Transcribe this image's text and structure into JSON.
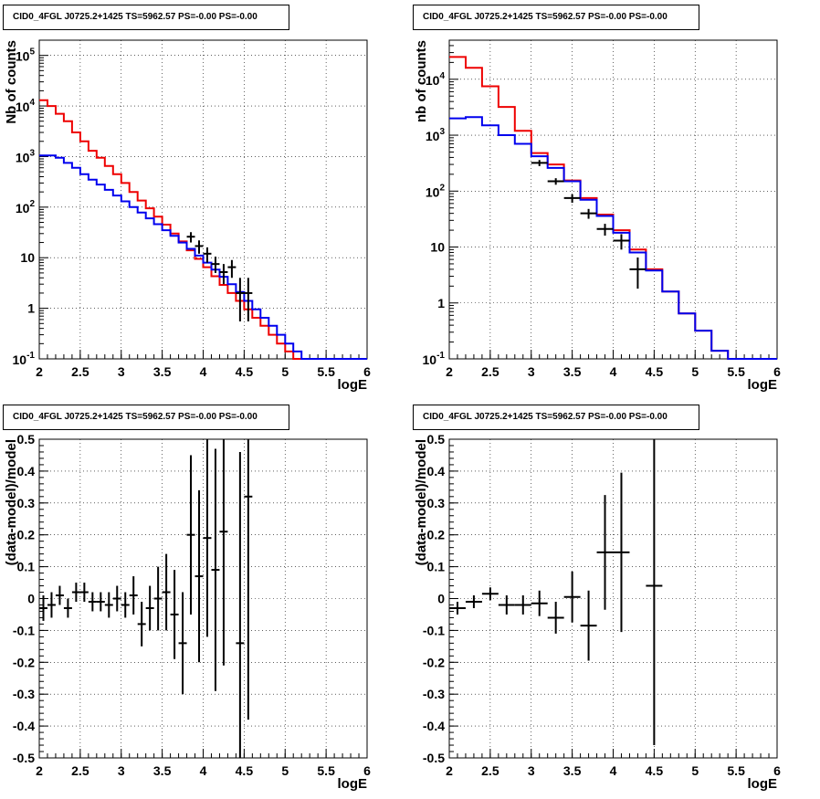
{
  "chart_data": [
    {
      "type": "step-histogram",
      "title": "CID0_4FGL J0725.2+1425 TS=5962.57 PS=-0.00 PS=-0.00",
      "xlabel": "logE",
      "ylabel": "Nb of counts",
      "xlim": [
        2,
        6
      ],
      "ylim": [
        0.1,
        200000
      ],
      "yscale": "log",
      "grid": true,
      "xticks": [
        "2",
        "2.5",
        "3",
        "3.5",
        "4",
        "4.5",
        "5",
        "5.5",
        "6"
      ],
      "yticks": [
        {
          "value": 0.1,
          "base": "10",
          "exp": "-1"
        },
        {
          "value": 1,
          "label": "1"
        },
        {
          "value": 10,
          "label": "10"
        },
        {
          "value": 100,
          "base": "10",
          "exp": "2"
        },
        {
          "value": 1000,
          "base": "10",
          "exp": "3"
        },
        {
          "value": 10000,
          "base": "10",
          "exp": "4"
        },
        {
          "value": 100000,
          "base": "10",
          "exp": "5"
        }
      ],
      "bin_edges": [
        2.0,
        2.1,
        2.2,
        2.3,
        2.4,
        2.5,
        2.6,
        2.7,
        2.8,
        2.9,
        3.0,
        3.1,
        3.2,
        3.3,
        3.4,
        3.5,
        3.6,
        3.7,
        3.8,
        3.9,
        4.0,
        4.1,
        4.2,
        4.3,
        4.4,
        4.5,
        4.6,
        4.7,
        4.8,
        4.9,
        5.0,
        5.1,
        5.2,
        5.3,
        5.4,
        5.5,
        5.6,
        5.7,
        5.8,
        5.9,
        6.0
      ],
      "series": [
        {
          "color": "#ee0000",
          "values": [
            13000,
            10000,
            7000,
            5000,
            3000,
            2000,
            1300,
            950,
            650,
            450,
            300,
            200,
            135,
            95,
            65,
            45,
            30,
            21,
            14,
            9.5,
            6.5,
            4.3,
            2.9,
            2.0,
            1.4,
            0.95,
            0.65,
            0.45,
            0.3,
            0.2,
            0.14,
            0.1,
            0.1,
            0.1,
            0.1,
            0.1,
            0.1,
            0.1,
            0.1,
            0.1
          ]
        },
        {
          "color": "#0000ee",
          "values": [
            1050,
            1050,
            950,
            750,
            600,
            450,
            350,
            280,
            220,
            170,
            130,
            100,
            78,
            60,
            46,
            35,
            27,
            20,
            15,
            11,
            8,
            5.8,
            4.2,
            3.0,
            2.1,
            1.4,
            0.95,
            0.65,
            0.45,
            0.3,
            0.2,
            0.14,
            0.1,
            0.1,
            0.1,
            0.1,
            0.1,
            0.1,
            0.1,
            0.1
          ]
        }
      ],
      "points": [
        {
          "x": 3.85,
          "y": 26,
          "ylo": 20,
          "yhi": 32
        },
        {
          "x": 3.95,
          "y": 17,
          "ylo": 12,
          "yhi": 22
        },
        {
          "x": 4.05,
          "y": 12,
          "ylo": 8,
          "yhi": 16
        },
        {
          "x": 4.15,
          "y": 7.5,
          "ylo": 5,
          "yhi": 10.5
        },
        {
          "x": 4.25,
          "y": 5.2,
          "ylo": 3,
          "yhi": 7.5
        },
        {
          "x": 4.35,
          "y": 6.5,
          "ylo": 4,
          "yhi": 9
        },
        {
          "x": 4.45,
          "y": 2,
          "ylo": 0.55,
          "yhi": 4
        },
        {
          "x": 4.55,
          "y": 2,
          "ylo": 0.55,
          "yhi": 4
        }
      ]
    },
    {
      "type": "step-histogram",
      "title": "CID0_4FGL J0725.2+1425 TS=5962.57 PS=-0.00 PS=-0.00",
      "xlabel": "logE",
      "ylabel": "nb of counts",
      "xlim": [
        2,
        6
      ],
      "ylim": [
        0.1,
        50000
      ],
      "yscale": "log",
      "grid": true,
      "xticks": [
        "2",
        "2.5",
        "3",
        "3.5",
        "4",
        "4.5",
        "5",
        "5.5",
        "6"
      ],
      "yticks": [
        {
          "value": 0.1,
          "base": "10",
          "exp": "-1"
        },
        {
          "value": 1,
          "label": "1"
        },
        {
          "value": 10,
          "label": "10"
        },
        {
          "value": 100,
          "base": "10",
          "exp": "2"
        },
        {
          "value": 1000,
          "base": "10",
          "exp": "3"
        },
        {
          "value": 10000,
          "base": "10",
          "exp": "4"
        }
      ],
      "bin_edges": [
        2.0,
        2.2,
        2.4,
        2.6,
        2.8,
        3.0,
        3.2,
        3.4,
        3.6,
        3.8,
        4.0,
        4.2,
        4.4,
        4.6,
        4.8,
        5.0,
        5.2,
        5.4,
        5.6,
        5.8,
        6.0
      ],
      "series": [
        {
          "color": "#ee0000",
          "values": [
            25000,
            16000,
            7500,
            3200,
            1200,
            480,
            300,
            155,
            75,
            38,
            20,
            9,
            4,
            1.6,
            0.65,
            0.32,
            0.14,
            0.1,
            0.1,
            0.1
          ]
        },
        {
          "color": "#0000ee",
          "values": [
            2000,
            2100,
            1500,
            1000,
            700,
            420,
            260,
            150,
            70,
            36,
            18,
            8,
            3.8,
            1.6,
            0.65,
            0.32,
            0.14,
            0.1,
            0.1,
            0.1
          ]
        }
      ],
      "points": [
        {
          "x": 3.1,
          "y": 320,
          "ylo": 280,
          "yhi": 360
        },
        {
          "x": 3.3,
          "y": 150,
          "ylo": 130,
          "yhi": 170
        },
        {
          "x": 3.5,
          "y": 75,
          "ylo": 62,
          "yhi": 88
        },
        {
          "x": 3.7,
          "y": 40,
          "ylo": 32,
          "yhi": 48
        },
        {
          "x": 3.9,
          "y": 21,
          "ylo": 16,
          "yhi": 26
        },
        {
          "x": 4.1,
          "y": 13,
          "ylo": 9,
          "yhi": 17
        },
        {
          "x": 4.3,
          "y": 4,
          "ylo": 1.8,
          "yhi": 6.5
        }
      ]
    },
    {
      "type": "scatter",
      "title": "CID0_4FGL J0725.2+1425 TS=5962.57 PS=-0.00 PS=-0.00",
      "xlabel": "logE",
      "ylabel": "(data-model)/model",
      "xlim": [
        2,
        6
      ],
      "ylim": [
        -0.5,
        0.5
      ],
      "yscale": "linear",
      "grid": true,
      "xticks": [
        "2",
        "2.5",
        "3",
        "3.5",
        "4",
        "4.5",
        "5",
        "5.5",
        "6"
      ],
      "yticks": [
        "-0.5",
        "-0.4",
        "-0.3",
        "-0.2",
        "-0.1",
        "0",
        "0.1",
        "0.2",
        "0.3",
        "0.4",
        "0.5"
      ],
      "bin_width": 0.1,
      "points": [
        {
          "x": 2.05,
          "y": -0.03,
          "err": 0.04
        },
        {
          "x": 2.15,
          "y": -0.02,
          "err": 0.04
        },
        {
          "x": 2.25,
          "y": 0.01,
          "err": 0.03
        },
        {
          "x": 2.35,
          "y": -0.03,
          "err": 0.03
        },
        {
          "x": 2.45,
          "y": 0.02,
          "err": 0.03
        },
        {
          "x": 2.55,
          "y": 0.02,
          "err": 0.03
        },
        {
          "x": 2.65,
          "y": -0.01,
          "err": 0.03
        },
        {
          "x": 2.75,
          "y": -0.01,
          "err": 0.03
        },
        {
          "x": 2.85,
          "y": -0.02,
          "err": 0.04
        },
        {
          "x": 2.95,
          "y": 0.0,
          "err": 0.04
        },
        {
          "x": 3.05,
          "y": -0.02,
          "err": 0.04
        },
        {
          "x": 3.15,
          "y": 0.01,
          "err": 0.06
        },
        {
          "x": 3.25,
          "y": -0.08,
          "err": 0.07
        },
        {
          "x": 3.35,
          "y": -0.03,
          "err": 0.07
        },
        {
          "x": 3.45,
          "y": 0.0,
          "err": 0.1
        },
        {
          "x": 3.55,
          "y": 0.02,
          "err": 0.12
        },
        {
          "x": 3.65,
          "y": -0.05,
          "err": 0.14
        },
        {
          "x": 3.75,
          "y": -0.14,
          "err": 0.16
        },
        {
          "x": 3.85,
          "y": 0.2,
          "err": 0.25
        },
        {
          "x": 3.95,
          "y": 0.07,
          "err": 0.27
        },
        {
          "x": 4.05,
          "y": 0.19,
          "err": 0.31
        },
        {
          "x": 4.15,
          "y": 0.09,
          "err": 0.38
        },
        {
          "x": 4.25,
          "y": 0.21,
          "err": 0.42
        },
        {
          "x": 4.45,
          "y": -0.14,
          "err": 0.6
        },
        {
          "x": 4.55,
          "y": 0.32,
          "err": 0.7
        }
      ]
    },
    {
      "type": "scatter",
      "title": "CID0_4FGL J0725.2+1425 TS=5962.57 PS=-0.00 PS=-0.00",
      "xlabel": "logE",
      "ylabel": "(data-model)/model",
      "xlim": [
        2,
        6
      ],
      "ylim": [
        -0.5,
        0.5
      ],
      "yscale": "linear",
      "grid": true,
      "xticks": [
        "2",
        "2.5",
        "3",
        "3.5",
        "4",
        "4.5",
        "5",
        "5.5",
        "6"
      ],
      "yticks": [
        "-0.5",
        "-0.4",
        "-0.3",
        "-0.2",
        "-0.1",
        "0",
        "0.1",
        "0.2",
        "0.3",
        "0.4",
        "0.5"
      ],
      "bin_width": 0.2,
      "points": [
        {
          "x": 2.1,
          "y": -0.03,
          "err": 0.02
        },
        {
          "x": 2.3,
          "y": -0.01,
          "err": 0.02
        },
        {
          "x": 2.5,
          "y": 0.015,
          "err": 0.02
        },
        {
          "x": 2.7,
          "y": -0.02,
          "err": 0.03
        },
        {
          "x": 2.9,
          "y": -0.02,
          "err": 0.03
        },
        {
          "x": 3.1,
          "y": -0.015,
          "err": 0.04
        },
        {
          "x": 3.3,
          "y": -0.06,
          "err": 0.05
        },
        {
          "x": 3.5,
          "y": 0.005,
          "err": 0.08
        },
        {
          "x": 3.7,
          "y": -0.085,
          "err": 0.11
        },
        {
          "x": 3.9,
          "y": 0.145,
          "err": 0.18
        },
        {
          "x": 4.1,
          "y": 0.145,
          "err": 0.25
        },
        {
          "x": 4.5,
          "y": 0.04,
          "err": 0.5
        }
      ]
    }
  ]
}
